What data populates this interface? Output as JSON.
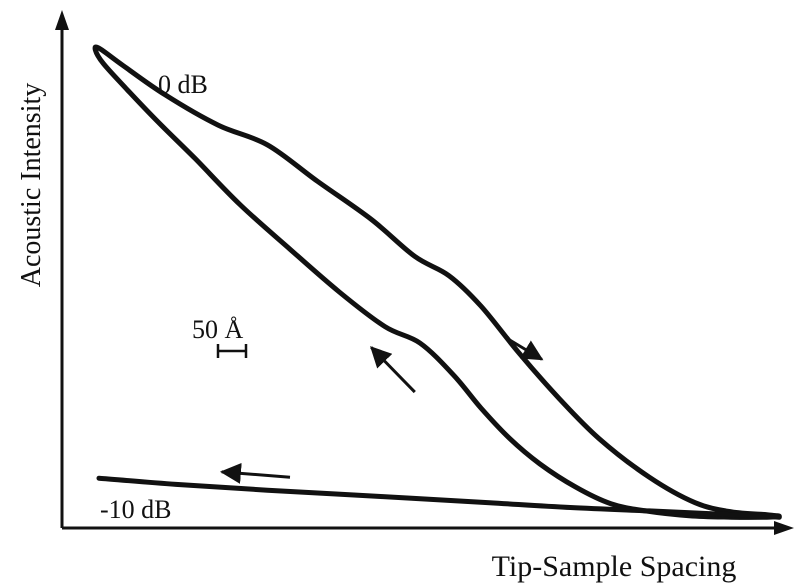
{
  "chart_data": {
    "type": "line",
    "title": "",
    "xlabel": "Tip-Sample Spacing",
    "ylabel": "Acoustic Intensity",
    "xlim": [
      0,
      100
    ],
    "ylim": [
      0,
      100
    ],
    "grid": false,
    "legend": "none",
    "scale_bar": {
      "label": "50 Å"
    },
    "series": [
      {
        "label": "0 dB",
        "loop": true,
        "x": [
          5.1,
          8.4,
          14.2,
          21.5,
          28.3,
          35.2,
          42.6,
          48.6,
          53.3,
          57.7,
          62.9,
          68.4,
          74.0,
          80.9,
          87.2,
          92.2,
          97.1,
          98.8,
          97.1,
          92.2,
          86.4,
          80.4,
          75.6,
          70.7,
          65.8,
          61.7,
          57.7,
          53.9,
          49.3,
          44.5,
          38.2,
          31.4,
          24.5,
          18.3,
          13.0,
          8.9,
          5.7,
          4.6,
          5.1
        ],
        "y": [
          98.3,
          94.7,
          88.6,
          82.3,
          78.2,
          70.6,
          62.7,
          55.0,
          51.0,
          44.7,
          35.0,
          25.6,
          17.1,
          9.1,
          3.8,
          1.9,
          1.3,
          1.0,
          0.8,
          0.8,
          1.1,
          2.1,
          3.6,
          7.1,
          11.9,
          17.1,
          23.5,
          30.4,
          37.0,
          40.4,
          47.6,
          56.5,
          65.8,
          75.4,
          83.3,
          89.8,
          95.1,
          97.9,
          98.3
        ]
      },
      {
        "label": "-10 dB",
        "loop": false,
        "x": [
          5.1,
          15.7,
          28.3,
          43.9,
          58.9,
          70.0,
          80.9,
          89.5,
          95.5,
          98.8
        ],
        "y": [
          8.9,
          7.6,
          6.4,
          5.1,
          3.8,
          2.8,
          2.1,
          1.5,
          1.1,
          0.8
        ]
      }
    ],
    "annotations": [
      {
        "name": "arrow-upper-right",
        "x1": 61.7,
        "y1": 37.6,
        "x2": 66.1,
        "y2": 33.6
      },
      {
        "name": "arrow-middle-left",
        "x1": 48.6,
        "y1": 26.8,
        "x2": 42.6,
        "y2": 36.1
      },
      {
        "name": "arrow-lower-left",
        "x1": 31.4,
        "y1": 9.1,
        "x2": 22.0,
        "y2": 10.2
      }
    ]
  }
}
